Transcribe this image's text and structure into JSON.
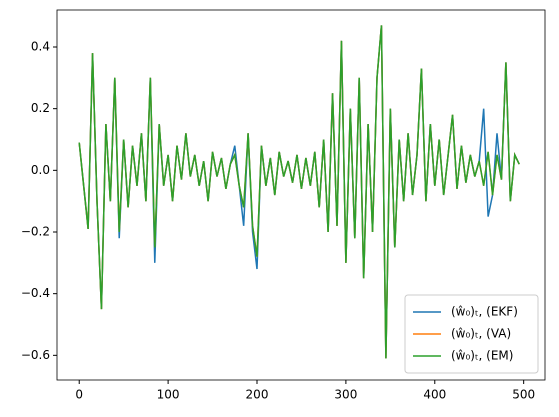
{
  "chart_data": {
    "type": "line",
    "x": [
      0,
      5,
      10,
      15,
      20,
      25,
      30,
      35,
      40,
      45,
      50,
      55,
      60,
      65,
      70,
      75,
      80,
      85,
      90,
      95,
      100,
      105,
      110,
      115,
      120,
      125,
      130,
      135,
      140,
      145,
      150,
      155,
      160,
      165,
      170,
      175,
      180,
      185,
      190,
      195,
      200,
      205,
      210,
      215,
      220,
      225,
      230,
      235,
      240,
      245,
      250,
      255,
      260,
      265,
      270,
      275,
      280,
      285,
      290,
      295,
      300,
      305,
      310,
      315,
      320,
      325,
      330,
      335,
      340,
      345,
      350,
      355,
      360,
      365,
      370,
      375,
      380,
      385,
      390,
      395,
      400,
      405,
      410,
      415,
      420,
      425,
      430,
      435,
      440,
      445,
      450,
      455,
      460,
      465,
      470,
      475,
      480,
      485,
      490,
      495
    ],
    "series": [
      {
        "name": "(ŵ₀)ₜ, (EKF)",
        "color": "#1f77b4",
        "values": [
          0.09,
          -0.05,
          -0.19,
          0.38,
          -0.1,
          -0.45,
          0.15,
          -0.1,
          0.3,
          -0.22,
          0.1,
          -0.12,
          0.08,
          -0.05,
          0.12,
          -0.1,
          0.3,
          -0.3,
          0.15,
          -0.05,
          0.05,
          -0.1,
          0.08,
          -0.03,
          0.12,
          -0.02,
          0.05,
          -0.05,
          0.03,
          -0.1,
          0.06,
          -0.02,
          0.04,
          -0.06,
          0.02,
          0.08,
          -0.05,
          -0.18,
          0.12,
          -0.2,
          -0.32,
          0.08,
          -0.05,
          0.04,
          -0.08,
          0.06,
          -0.02,
          0.03,
          -0.04,
          0.05,
          -0.06,
          0.04,
          -0.05,
          0.06,
          -0.12,
          0.1,
          -0.2,
          0.25,
          -0.18,
          0.42,
          -0.3,
          0.2,
          -0.22,
          0.3,
          -0.35,
          0.15,
          -0.2,
          0.3,
          0.47,
          -0.61,
          0.2,
          -0.25,
          0.1,
          -0.1,
          0.12,
          -0.08,
          0.05,
          0.33,
          -0.1,
          0.15,
          -0.05,
          0.1,
          -0.08,
          0.05,
          0.18,
          -0.06,
          0.08,
          -0.04,
          0.05,
          -0.02,
          0.03,
          0.2,
          -0.15,
          -0.08,
          0.12,
          -0.03,
          0.35,
          -0.1,
          0.05,
          0.02
        ]
      },
      {
        "name": "(ŵ₀)ₜ, (VA)",
        "color": "#ff7f0e",
        "values": [
          0.09,
          -0.05,
          -0.19,
          0.38,
          -0.1,
          -0.45,
          0.15,
          -0.1,
          0.3,
          -0.2,
          0.1,
          -0.12,
          0.08,
          -0.05,
          0.12,
          -0.1,
          0.3,
          -0.25,
          0.15,
          -0.05,
          0.05,
          -0.1,
          0.08,
          -0.03,
          0.12,
          -0.02,
          0.05,
          -0.05,
          0.03,
          -0.1,
          0.06,
          -0.02,
          0.04,
          -0.06,
          0.02,
          0.05,
          -0.05,
          -0.12,
          0.12,
          -0.18,
          -0.28,
          0.08,
          -0.05,
          0.04,
          -0.08,
          0.06,
          -0.02,
          0.03,
          -0.04,
          0.05,
          -0.06,
          0.04,
          -0.05,
          0.06,
          -0.12,
          0.1,
          -0.2,
          0.25,
          -0.18,
          0.42,
          -0.3,
          0.2,
          -0.22,
          0.3,
          -0.35,
          0.15,
          -0.2,
          0.3,
          0.47,
          -0.61,
          0.2,
          -0.25,
          0.1,
          -0.1,
          0.12,
          -0.08,
          0.05,
          0.33,
          -0.1,
          0.15,
          -0.05,
          0.1,
          -0.08,
          0.05,
          0.18,
          -0.06,
          0.08,
          -0.04,
          0.05,
          -0.02,
          0.03,
          -0.05,
          0.06,
          -0.08,
          0.05,
          -0.03,
          0.35,
          -0.1,
          0.05,
          0.02
        ]
      },
      {
        "name": "(ŵ₀)ₜ, (EM)",
        "color": "#2ca02c",
        "values": [
          0.09,
          -0.05,
          -0.19,
          0.38,
          -0.1,
          -0.45,
          0.15,
          -0.1,
          0.3,
          -0.2,
          0.1,
          -0.12,
          0.08,
          -0.05,
          0.12,
          -0.1,
          0.3,
          -0.25,
          0.15,
          -0.05,
          0.05,
          -0.1,
          0.08,
          -0.03,
          0.12,
          -0.02,
          0.05,
          -0.05,
          0.03,
          -0.1,
          0.06,
          -0.02,
          0.04,
          -0.06,
          0.02,
          0.05,
          -0.05,
          -0.12,
          0.12,
          -0.18,
          -0.28,
          0.08,
          -0.05,
          0.04,
          -0.08,
          0.06,
          -0.02,
          0.03,
          -0.04,
          0.05,
          -0.06,
          0.04,
          -0.05,
          0.06,
          -0.12,
          0.1,
          -0.2,
          0.25,
          -0.18,
          0.42,
          -0.3,
          0.2,
          -0.22,
          0.3,
          -0.35,
          0.15,
          -0.2,
          0.3,
          0.47,
          -0.61,
          0.2,
          -0.25,
          0.1,
          -0.1,
          0.12,
          -0.08,
          0.05,
          0.33,
          -0.1,
          0.15,
          -0.05,
          0.1,
          -0.08,
          0.05,
          0.18,
          -0.06,
          0.08,
          -0.04,
          0.05,
          -0.02,
          0.03,
          -0.05,
          0.06,
          -0.08,
          0.05,
          -0.03,
          0.35,
          -0.1,
          0.05,
          0.02
        ]
      }
    ],
    "xlim": [
      -25,
      524
    ],
    "ylim": [
      -0.68,
      0.52
    ],
    "xticks": [
      0,
      100,
      200,
      300,
      400,
      500
    ],
    "yticks": [
      {
        "value": -0.6,
        "label": "−0.6"
      },
      {
        "value": -0.4,
        "label": "−0.4"
      },
      {
        "value": -0.2,
        "label": "−0.2"
      },
      {
        "value": 0,
        "label": "0.0"
      },
      0.2,
      0.4
    ],
    "legend": "lower right"
  }
}
